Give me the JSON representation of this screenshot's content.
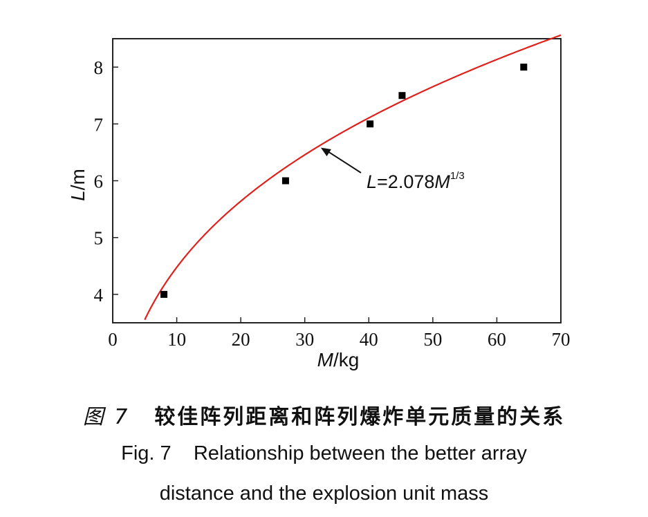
{
  "chart_data": {
    "type": "scatter",
    "xlabel": "M/kg",
    "ylabel": "L/m",
    "xlim": [
      0,
      70
    ],
    "ylim": [
      3.5,
      8.5
    ],
    "xticks": [
      0,
      10,
      20,
      30,
      40,
      50,
      60,
      70
    ],
    "yticks": [
      4,
      5,
      6,
      7,
      8
    ],
    "grid": false,
    "points": [
      {
        "x": 8,
        "y": 4.0
      },
      {
        "x": 27,
        "y": 6.0
      },
      {
        "x": 40.2,
        "y": 7.0
      },
      {
        "x": 45.2,
        "y": 7.5
      },
      {
        "x": 64.2,
        "y": 8.0
      }
    ],
    "fit_curve": {
      "coefficient": 2.078,
      "exponent": 0.3333,
      "x_range": [
        5,
        70
      ],
      "color": "#e0201b"
    },
    "annotation": {
      "text_L": "L",
      "text_mid": "=2.078",
      "text_M": "M",
      "text_exp": "1/3",
      "arrow_target_x": 32.5
    }
  },
  "caption": {
    "cn_fig": "图 7",
    "cn_title": "较佳阵列距离和阵列爆炸单元质量的关系",
    "en_line1": "Fig. 7    Relationship between the better array",
    "en_line2": "distance and the explosion unit mass"
  },
  "colors": {
    "curve": "#e0201b",
    "marker": "#000000",
    "axis": "#222222"
  }
}
